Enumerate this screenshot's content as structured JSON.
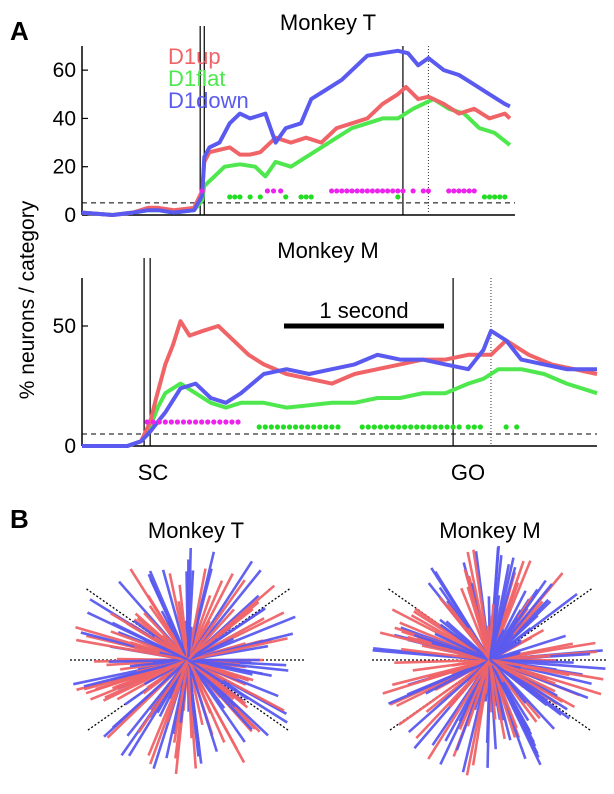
{
  "panel_a_label": "A",
  "panel_b_label": "B",
  "ylabel": "% neurons / category",
  "colors": {
    "D1up": "#f06468",
    "D1flat": "#4ee84e",
    "D1down": "#5a5af0",
    "sig": "#ee22ee",
    "sig2": "#22dd22"
  },
  "chart_data": [
    {
      "type": "line",
      "title": "Monkey T",
      "ylim": [
        0,
        70
      ],
      "yticks": [
        0,
        20,
        40,
        60
      ],
      "threshold": 5,
      "legend": [
        "D1up",
        "D1flat",
        "D1down"
      ],
      "legend_placement": "top-left",
      "x_range": [
        -1.2,
        3.05
      ],
      "events": {
        "SC_lines": [
          -0.04,
          0.0
        ],
        "GO": 1.95,
        "GO_dotted": 2.2
      },
      "series": [
        {
          "name": "D1up",
          "x": [
            -1.2,
            -0.9,
            -0.7,
            -0.55,
            -0.45,
            -0.3,
            -0.1,
            -0.02,
            0.0,
            0.05,
            0.15,
            0.25,
            0.35,
            0.45,
            0.55,
            0.7,
            0.85,
            1.0,
            1.15,
            1.3,
            1.45,
            1.6,
            1.75,
            1.9,
            1.98,
            2.1,
            2.2,
            2.35,
            2.5,
            2.65,
            2.8,
            2.95,
            3.0
          ],
          "values": [
            1,
            0,
            1,
            3,
            3,
            2,
            3,
            10,
            22,
            26,
            27,
            28,
            25,
            25,
            26,
            32,
            30,
            32,
            30,
            36,
            38,
            40,
            46,
            50,
            53,
            48,
            49,
            46,
            42,
            44,
            40,
            42,
            40
          ]
        },
        {
          "name": "D1flat",
          "x": [
            -1.2,
            -0.9,
            -0.7,
            -0.55,
            -0.45,
            -0.3,
            -0.1,
            -0.02,
            0.0,
            0.1,
            0.2,
            0.35,
            0.5,
            0.6,
            0.7,
            0.85,
            1.0,
            1.15,
            1.3,
            1.45,
            1.6,
            1.75,
            1.9,
            2.05,
            2.15,
            2.25,
            2.4,
            2.55,
            2.7,
            2.85,
            3.0
          ],
          "values": [
            1,
            0,
            1,
            2,
            2,
            1,
            2,
            6,
            12,
            16,
            20,
            21,
            20,
            16,
            22,
            20,
            24,
            28,
            32,
            36,
            38,
            40,
            40,
            44,
            46,
            48,
            44,
            42,
            36,
            34,
            29
          ]
        },
        {
          "name": "D1down",
          "x": [
            -1.2,
            -0.9,
            -0.7,
            -0.55,
            -0.45,
            -0.3,
            -0.1,
            -0.02,
            0.0,
            0.05,
            0.15,
            0.25,
            0.35,
            0.45,
            0.6,
            0.7,
            0.8,
            0.95,
            1.05,
            1.2,
            1.35,
            1.5,
            1.6,
            1.75,
            1.9,
            2.0,
            2.1,
            2.2,
            2.35,
            2.5,
            2.65,
            2.8,
            2.95,
            3.0
          ],
          "values": [
            1,
            0,
            1,
            2,
            2,
            1,
            2,
            8,
            24,
            28,
            30,
            38,
            42,
            40,
            42,
            30,
            36,
            38,
            48,
            52,
            56,
            62,
            66,
            67,
            68,
            67,
            62,
            65,
            60,
            58,
            54,
            50,
            46,
            45
          ]
        }
      ],
      "sig_magenta_x": [
        -0.02,
        0.62,
        0.68,
        0.75,
        1.25,
        1.3,
        1.35,
        1.4,
        1.45,
        1.5,
        1.55,
        1.6,
        1.65,
        1.7,
        1.75,
        1.8,
        1.85,
        1.9,
        1.95,
        2.05,
        2.15,
        2.2,
        2.4,
        2.45,
        2.5,
        2.55,
        2.6,
        2.65
      ],
      "sig_green_x": [
        0.25,
        0.3,
        0.35,
        0.45,
        0.55,
        0.8,
        0.95,
        1.0,
        1.05,
        1.9,
        2.75,
        2.8,
        2.85,
        2.9,
        2.95
      ]
    },
    {
      "type": "line",
      "title": "Monkey M",
      "ylim": [
        0,
        70
      ],
      "yticks": [
        0,
        50
      ],
      "threshold": 5,
      "scalebar_label": "1 second",
      "scalebar_seconds": 1.0,
      "x_range": [
        -0.45,
        2.95
      ],
      "event_labels": {
        "SC": "SC",
        "GO": "GO"
      },
      "events": {
        "SC_lines": [
          -0.04,
          0.0
        ],
        "GO": 2.0,
        "GO_dotted": 2.25
      },
      "series": [
        {
          "name": "D1up",
          "x": [
            -0.45,
            -0.3,
            -0.15,
            -0.06,
            0.0,
            0.04,
            0.1,
            0.15,
            0.2,
            0.26,
            0.35,
            0.45,
            0.55,
            0.65,
            0.75,
            0.9,
            1.05,
            1.2,
            1.35,
            1.5,
            1.65,
            1.8,
            1.95,
            2.1,
            2.25,
            2.35,
            2.5,
            2.65,
            2.8,
            2.95
          ],
          "values": [
            0,
            0,
            0,
            2,
            10,
            20,
            34,
            42,
            52,
            46,
            48,
            50,
            44,
            38,
            34,
            30,
            28,
            26,
            30,
            32,
            34,
            36,
            36,
            38,
            38,
            44,
            38,
            34,
            32,
            30
          ]
        },
        {
          "name": "D1flat",
          "x": [
            -0.45,
            -0.3,
            -0.15,
            -0.06,
            0.0,
            0.05,
            0.1,
            0.2,
            0.3,
            0.4,
            0.5,
            0.6,
            0.75,
            0.9,
            1.05,
            1.2,
            1.35,
            1.5,
            1.65,
            1.8,
            1.95,
            2.1,
            2.2,
            2.3,
            2.45,
            2.6,
            2.75,
            2.95
          ],
          "values": [
            0,
            0,
            0,
            2,
            8,
            16,
            22,
            26,
            22,
            18,
            16,
            18,
            18,
            16,
            17,
            18,
            18,
            20,
            20,
            22,
            22,
            26,
            28,
            32,
            32,
            30,
            26,
            22
          ]
        },
        {
          "name": "D1down",
          "x": [
            -0.45,
            -0.3,
            -0.15,
            -0.06,
            0.0,
            0.05,
            0.1,
            0.2,
            0.3,
            0.4,
            0.5,
            0.6,
            0.75,
            0.9,
            1.05,
            1.2,
            1.35,
            1.5,
            1.65,
            1.8,
            1.95,
            2.1,
            2.2,
            2.25,
            2.35,
            2.45,
            2.6,
            2.75,
            2.95
          ],
          "values": [
            0,
            0,
            0,
            2,
            6,
            10,
            14,
            24,
            26,
            20,
            18,
            22,
            30,
            32,
            30,
            32,
            34,
            38,
            36,
            36,
            34,
            32,
            40,
            48,
            44,
            36,
            34,
            32,
            32
          ]
        }
      ],
      "sig_magenta_x": [
        -0.02,
        0.02,
        0.06,
        0.1,
        0.14,
        0.18,
        0.22,
        0.26,
        0.3,
        0.34,
        0.38,
        0.42,
        0.46,
        0.5,
        0.54,
        0.58
      ],
      "sig_green_x": [
        0.72,
        0.76,
        0.8,
        0.84,
        0.88,
        0.92,
        0.96,
        1.0,
        1.04,
        1.08,
        1.12,
        1.16,
        1.2,
        1.24,
        1.4,
        1.44,
        1.48,
        1.52,
        1.56,
        1.6,
        1.64,
        1.68,
        1.72,
        1.76,
        1.8,
        1.84,
        1.88,
        1.92,
        1.96,
        2.0,
        2.04,
        2.1,
        2.14,
        2.18,
        2.35,
        2.42
      ]
    },
    {
      "type": "radial",
      "title": "Monkey T",
      "seed": 7,
      "series": [
        "D1up",
        "D1down"
      ]
    },
    {
      "type": "radial",
      "title": "Monkey M",
      "seed": 19,
      "series": [
        "D1up",
        "D1down"
      ]
    }
  ]
}
